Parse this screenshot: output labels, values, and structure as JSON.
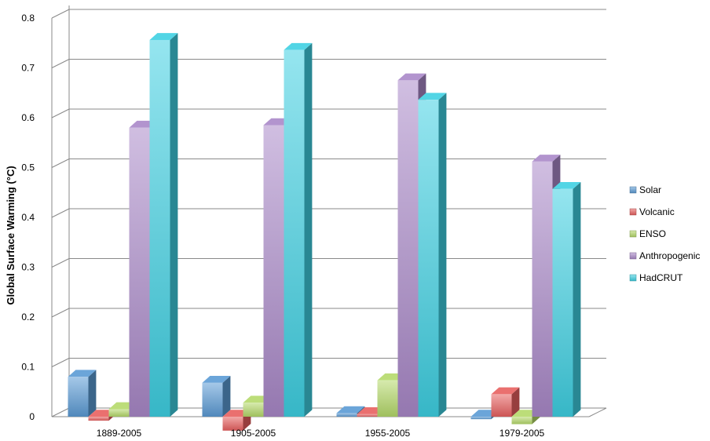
{
  "chart_data": {
    "type": "bar",
    "subtype": "3d-clustered-column",
    "ylabel": "Global Surface Warming (°C)",
    "xlabel": "",
    "ylim": [
      0,
      0.8
    ],
    "yticks": [
      "0",
      "0.1",
      "0.2",
      "0.3",
      "0.4",
      "0.5",
      "0.6",
      "0.7",
      "0.8"
    ],
    "grid": true,
    "legend_position": "right",
    "categories": [
      "1889-2005",
      "1905-2005",
      "1955-2005",
      "1979-2005"
    ],
    "series": [
      {
        "name": "Solar",
        "color": "#5b9bd5",
        "values": [
          0.08,
          0.068,
          0.007,
          -0.005
        ]
      },
      {
        "name": "Volcanic",
        "color": "#e8605f",
        "values": [
          -0.008,
          -0.028,
          0.005,
          0.045
        ]
      },
      {
        "name": "ENSO",
        "color": "#b5d96a",
        "values": [
          0.015,
          0.028,
          0.073,
          -0.015
        ]
      },
      {
        "name": "Anthropogenic",
        "color": "#a988c8",
        "values": [
          0.58,
          0.585,
          0.675,
          0.512
        ]
      },
      {
        "name": "HadCRUT",
        "color": "#3fd0e2",
        "values": [
          0.756,
          0.736,
          0.636,
          0.457
        ]
      }
    ]
  }
}
